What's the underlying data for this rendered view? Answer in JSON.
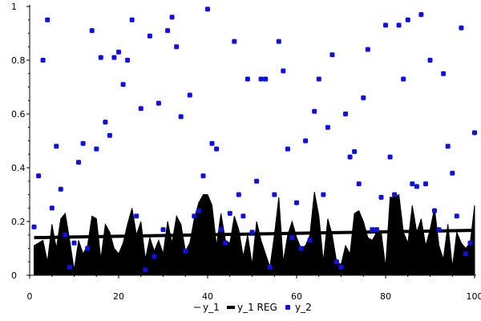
{
  "chart_data": {
    "type": "area",
    "title": "",
    "xlabel": "",
    "ylabel": "",
    "xlim": [
      0,
      100
    ],
    "ylim": [
      0,
      1
    ],
    "xticks": [
      "0",
      "20",
      "40",
      "60",
      "80",
      "100"
    ],
    "yticks": [
      "0",
      "0.2",
      "0.4",
      "0.6",
      "0.8",
      "1"
    ],
    "grid": false,
    "legend_position": "bottom",
    "colors": {
      "y_1": "#000000",
      "y_1_reg": "#000000",
      "y_2": "#1010e0"
    },
    "series": [
      {
        "name": "y_1",
        "kind": "area",
        "x": [
          1,
          2,
          3,
          4,
          5,
          6,
          7,
          8,
          9,
          10,
          11,
          12,
          13,
          14,
          15,
          16,
          17,
          18,
          19,
          20,
          21,
          22,
          23,
          24,
          25,
          26,
          27,
          28,
          29,
          30,
          31,
          32,
          33,
          34,
          35,
          36,
          37,
          38,
          39,
          40,
          41,
          42,
          43,
          44,
          45,
          46,
          47,
          48,
          49,
          50,
          51,
          52,
          53,
          54,
          55,
          56,
          57,
          58,
          59,
          60,
          61,
          62,
          63,
          64,
          65,
          66,
          67,
          68,
          69,
          70,
          71,
          72,
          73,
          74,
          75,
          76,
          77,
          78,
          79,
          80,
          81,
          82,
          83,
          84,
          85,
          86,
          87,
          88,
          89,
          90,
          91,
          92,
          93,
          94,
          95,
          96,
          97,
          98,
          99,
          100
        ],
        "values": [
          0.11,
          0.12,
          0.13,
          0.05,
          0.19,
          0.1,
          0.21,
          0.23,
          0.13,
          0.02,
          0.13,
          0.08,
          0.11,
          0.22,
          0.21,
          0.06,
          0.19,
          0.16,
          0.1,
          0.08,
          0.12,
          0.19,
          0.25,
          0.15,
          0.2,
          0.06,
          0.14,
          0.09,
          0.13,
          0.08,
          0.2,
          0.12,
          0.22,
          0.19,
          0.09,
          0.12,
          0.21,
          0.27,
          0.3,
          0.3,
          0.26,
          0.11,
          0.23,
          0.13,
          0.12,
          0.22,
          0.17,
          0.07,
          0.15,
          0.04,
          0.2,
          0.13,
          0.08,
          0.03,
          0.15,
          0.29,
          0.05,
          0.15,
          0.2,
          0.14,
          0.1,
          0.11,
          0.15,
          0.31,
          0.22,
          0.05,
          0.21,
          0.15,
          0.05,
          0.04,
          0.11,
          0.08,
          0.23,
          0.24,
          0.2,
          0.14,
          0.13,
          0.16,
          0.16,
          0.03,
          0.29,
          0.29,
          0.3,
          0.16,
          0.12,
          0.26,
          0.16,
          0.21,
          0.11,
          0.17,
          0.25,
          0.11,
          0.06,
          0.19,
          0.03,
          0.16,
          0.12,
          0.1,
          0.12,
          0.26
        ]
      },
      {
        "name": "y_1 REG",
        "kind": "line",
        "x": [
          1,
          100
        ],
        "values": [
          0.14,
          0.167
        ]
      },
      {
        "name": "y_2",
        "kind": "scatter",
        "x": [
          1,
          2,
          3,
          4,
          5,
          6,
          7,
          8,
          9,
          10,
          11,
          12,
          13,
          14,
          15,
          16,
          17,
          18,
          19,
          20,
          21,
          22,
          23,
          24,
          25,
          26,
          27,
          28,
          29,
          30,
          31,
          32,
          33,
          34,
          35,
          36,
          37,
          38,
          39,
          40,
          41,
          42,
          43,
          44,
          45,
          46,
          47,
          48,
          49,
          50,
          51,
          52,
          53,
          54,
          55,
          56,
          57,
          58,
          59,
          60,
          61,
          62,
          63,
          64,
          65,
          66,
          67,
          68,
          69,
          70,
          71,
          72,
          73,
          74,
          75,
          76,
          77,
          78,
          79,
          80,
          81,
          82,
          83,
          84,
          85,
          86,
          87,
          88,
          89,
          90,
          91,
          92,
          93,
          94,
          95,
          96,
          97,
          98,
          99,
          100
        ],
        "values": [
          0.18,
          0.37,
          0.8,
          0.95,
          0.25,
          0.48,
          0.32,
          0.15,
          0.03,
          0.12,
          0.42,
          0.49,
          0.1,
          0.91,
          0.47,
          0.81,
          0.57,
          0.52,
          0.81,
          0.83,
          0.71,
          0.8,
          0.95,
          0.22,
          0.62,
          0.02,
          0.89,
          0.07,
          0.64,
          0.17,
          0.91,
          0.96,
          0.85,
          0.59,
          0.09,
          0.67,
          0.22,
          0.24,
          0.37,
          0.99,
          0.49,
          0.47,
          0.17,
          0.12,
          0.23,
          0.87,
          0.3,
          0.22,
          0.73,
          0.16,
          0.35,
          0.73,
          0.73,
          0.03,
          0.3,
          0.87,
          0.76,
          0.47,
          0.14,
          0.27,
          0.1,
          0.5,
          0.13,
          0.61,
          0.73,
          0.3,
          0.55,
          0.82,
          0.05,
          0.03,
          0.6,
          0.44,
          0.46,
          0.34,
          0.66,
          0.84,
          0.17,
          0.17,
          0.29,
          0.93,
          0.44,
          0.3,
          0.93,
          0.73,
          0.95,
          0.34,
          0.33,
          0.97,
          0.34,
          0.8,
          0.24,
          0.17,
          0.75,
          0.48,
          0.38,
          0.22,
          0.92,
          0.08,
          0.12,
          0.53
        ]
      }
    ]
  }
}
